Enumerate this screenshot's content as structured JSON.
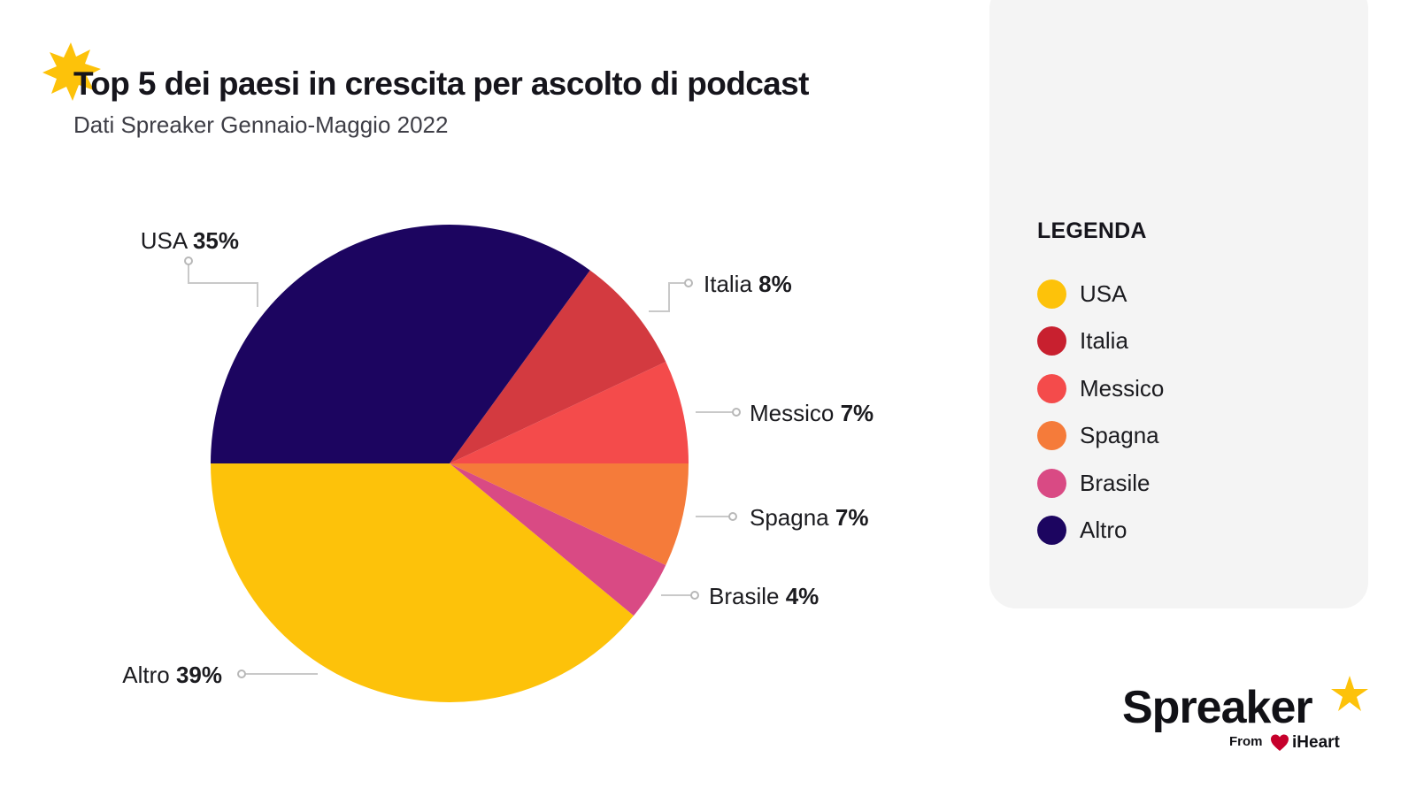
{
  "header": {
    "title": "Top 5 dei paesi in crescita per ascolto di podcast",
    "subtitle": "Dati Spreaker Gennaio-Maggio 2022"
  },
  "chart_data": {
    "type": "pie",
    "title": "Top 5 dei paesi in crescita per ascolto di podcast",
    "subtitle": "Dati Spreaker Gennaio-Maggio 2022",
    "start_angle_deg": 0,
    "direction": "counterclockwise",
    "slices": [
      {
        "name": "Messico",
        "value": 7,
        "label": "7%",
        "color": "#f44b4b"
      },
      {
        "name": "Italia",
        "value": 8,
        "label": "8%",
        "color": "#d33a40"
      },
      {
        "name": "USA",
        "value": 35,
        "label": "35%",
        "color": "#1c0560"
      },
      {
        "name": "Altro",
        "value": 39,
        "label": "39%",
        "color": "#fdc20a"
      },
      {
        "name": "Brasile",
        "value": 4,
        "label": "4%",
        "color": "#d94a84"
      },
      {
        "name": "Spagna",
        "value": 7,
        "label": "7%",
        "color": "#f57b3a"
      }
    ]
  },
  "legend": {
    "title": "LEGENDA",
    "items": [
      {
        "label": "USA",
        "color": "#fdc20a"
      },
      {
        "label": "Italia",
        "color": "#c8202f"
      },
      {
        "label": "Messico",
        "color": "#f44b4b"
      },
      {
        "label": "Spagna",
        "color": "#f57b3a"
      },
      {
        "label": "Brasile",
        "color": "#d94a84"
      },
      {
        "label": "Altro",
        "color": "#1c0560"
      }
    ]
  },
  "brand": {
    "name": "Spreaker",
    "from": "From",
    "partner": "iHeart",
    "accent": "#fdc20a",
    "partner_color": "#c6002b"
  }
}
